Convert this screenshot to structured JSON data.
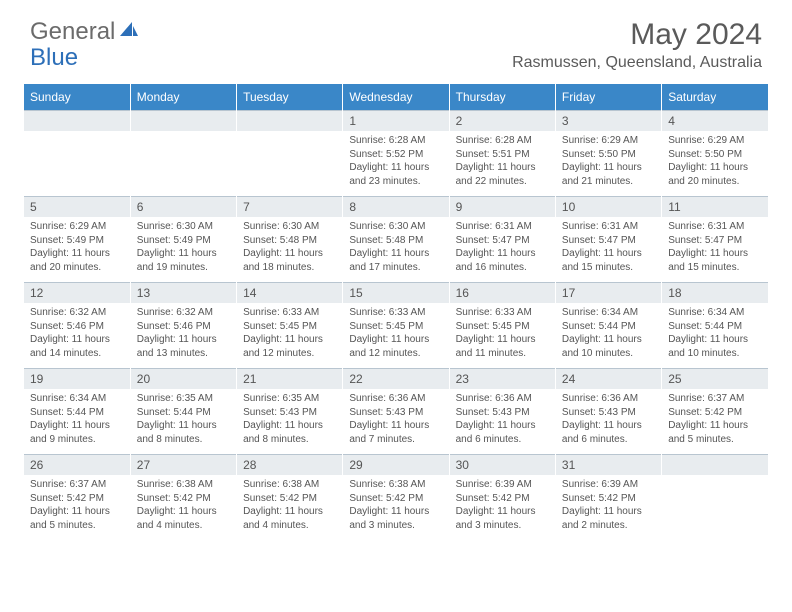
{
  "logo": {
    "text1": "General",
    "text2": "Blue"
  },
  "title": "May 2024",
  "location": "Rasmussen, Queensland, Australia",
  "colors": {
    "header_bg": "#3a87c8",
    "header_text": "#ffffff",
    "daynum_bg": "#e8ecef",
    "body_text": "#555555",
    "logo_gray": "#6b6b6b",
    "logo_blue": "#2d6fb8",
    "page_bg": "#ffffff",
    "row_divider": "#b8c5d0"
  },
  "weekdays": [
    "Sunday",
    "Monday",
    "Tuesday",
    "Wednesday",
    "Thursday",
    "Friday",
    "Saturday"
  ],
  "weeks": [
    [
      {
        "n": "",
        "sr": "",
        "ss": "",
        "dl": ""
      },
      {
        "n": "",
        "sr": "",
        "ss": "",
        "dl": ""
      },
      {
        "n": "",
        "sr": "",
        "ss": "",
        "dl": ""
      },
      {
        "n": "1",
        "sr": "6:28 AM",
        "ss": "5:52 PM",
        "dl": "11 hours and 23 minutes."
      },
      {
        "n": "2",
        "sr": "6:28 AM",
        "ss": "5:51 PM",
        "dl": "11 hours and 22 minutes."
      },
      {
        "n": "3",
        "sr": "6:29 AM",
        "ss": "5:50 PM",
        "dl": "11 hours and 21 minutes."
      },
      {
        "n": "4",
        "sr": "6:29 AM",
        "ss": "5:50 PM",
        "dl": "11 hours and 20 minutes."
      }
    ],
    [
      {
        "n": "5",
        "sr": "6:29 AM",
        "ss": "5:49 PM",
        "dl": "11 hours and 20 minutes."
      },
      {
        "n": "6",
        "sr": "6:30 AM",
        "ss": "5:49 PM",
        "dl": "11 hours and 19 minutes."
      },
      {
        "n": "7",
        "sr": "6:30 AM",
        "ss": "5:48 PM",
        "dl": "11 hours and 18 minutes."
      },
      {
        "n": "8",
        "sr": "6:30 AM",
        "ss": "5:48 PM",
        "dl": "11 hours and 17 minutes."
      },
      {
        "n": "9",
        "sr": "6:31 AM",
        "ss": "5:47 PM",
        "dl": "11 hours and 16 minutes."
      },
      {
        "n": "10",
        "sr": "6:31 AM",
        "ss": "5:47 PM",
        "dl": "11 hours and 15 minutes."
      },
      {
        "n": "11",
        "sr": "6:31 AM",
        "ss": "5:47 PM",
        "dl": "11 hours and 15 minutes."
      }
    ],
    [
      {
        "n": "12",
        "sr": "6:32 AM",
        "ss": "5:46 PM",
        "dl": "11 hours and 14 minutes."
      },
      {
        "n": "13",
        "sr": "6:32 AM",
        "ss": "5:46 PM",
        "dl": "11 hours and 13 minutes."
      },
      {
        "n": "14",
        "sr": "6:33 AM",
        "ss": "5:45 PM",
        "dl": "11 hours and 12 minutes."
      },
      {
        "n": "15",
        "sr": "6:33 AM",
        "ss": "5:45 PM",
        "dl": "11 hours and 12 minutes."
      },
      {
        "n": "16",
        "sr": "6:33 AM",
        "ss": "5:45 PM",
        "dl": "11 hours and 11 minutes."
      },
      {
        "n": "17",
        "sr": "6:34 AM",
        "ss": "5:44 PM",
        "dl": "11 hours and 10 minutes."
      },
      {
        "n": "18",
        "sr": "6:34 AM",
        "ss": "5:44 PM",
        "dl": "11 hours and 10 minutes."
      }
    ],
    [
      {
        "n": "19",
        "sr": "6:34 AM",
        "ss": "5:44 PM",
        "dl": "11 hours and 9 minutes."
      },
      {
        "n": "20",
        "sr": "6:35 AM",
        "ss": "5:44 PM",
        "dl": "11 hours and 8 minutes."
      },
      {
        "n": "21",
        "sr": "6:35 AM",
        "ss": "5:43 PM",
        "dl": "11 hours and 8 minutes."
      },
      {
        "n": "22",
        "sr": "6:36 AM",
        "ss": "5:43 PM",
        "dl": "11 hours and 7 minutes."
      },
      {
        "n": "23",
        "sr": "6:36 AM",
        "ss": "5:43 PM",
        "dl": "11 hours and 6 minutes."
      },
      {
        "n": "24",
        "sr": "6:36 AM",
        "ss": "5:43 PM",
        "dl": "11 hours and 6 minutes."
      },
      {
        "n": "25",
        "sr": "6:37 AM",
        "ss": "5:42 PM",
        "dl": "11 hours and 5 minutes."
      }
    ],
    [
      {
        "n": "26",
        "sr": "6:37 AM",
        "ss": "5:42 PM",
        "dl": "11 hours and 5 minutes."
      },
      {
        "n": "27",
        "sr": "6:38 AM",
        "ss": "5:42 PM",
        "dl": "11 hours and 4 minutes."
      },
      {
        "n": "28",
        "sr": "6:38 AM",
        "ss": "5:42 PM",
        "dl": "11 hours and 4 minutes."
      },
      {
        "n": "29",
        "sr": "6:38 AM",
        "ss": "5:42 PM",
        "dl": "11 hours and 3 minutes."
      },
      {
        "n": "30",
        "sr": "6:39 AM",
        "ss": "5:42 PM",
        "dl": "11 hours and 3 minutes."
      },
      {
        "n": "31",
        "sr": "6:39 AM",
        "ss": "5:42 PM",
        "dl": "11 hours and 2 minutes."
      },
      {
        "n": "",
        "sr": "",
        "ss": "",
        "dl": ""
      }
    ]
  ],
  "labels": {
    "sunrise": "Sunrise:",
    "sunset": "Sunset:",
    "daylight": "Daylight:"
  }
}
